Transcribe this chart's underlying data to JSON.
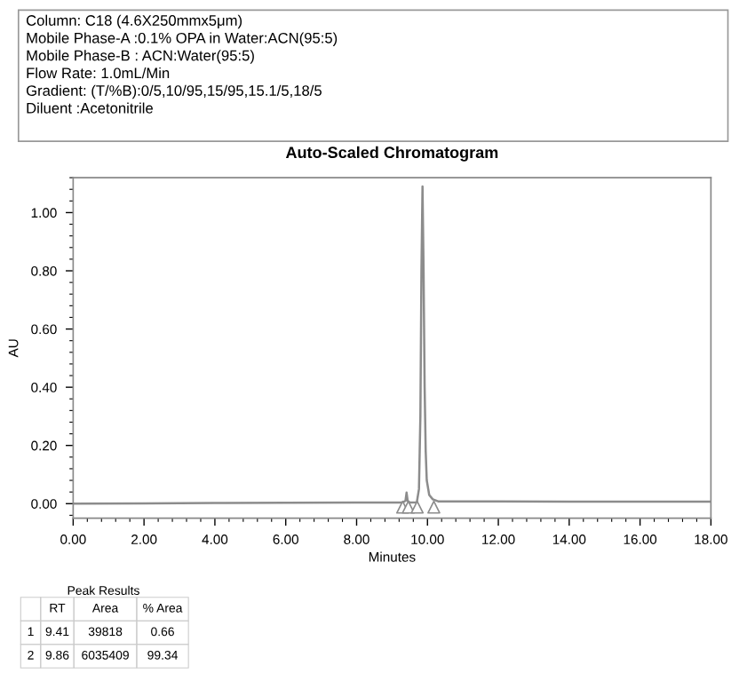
{
  "chart_data": {
    "type": "line",
    "title": "Auto-Scaled Chromatogram",
    "xlabel": "Minutes",
    "ylabel": "AU",
    "series": [
      {
        "color": "#8c8c8c",
        "x": [
          0,
          2,
          4,
          6,
          8,
          9.0,
          9.3,
          9.38,
          9.41,
          9.44,
          9.5,
          9.7,
          9.76,
          9.8,
          9.83,
          9.86,
          9.89,
          9.92,
          9.95,
          9.98,
          10.05,
          10.15,
          10.3,
          12,
          14,
          16,
          18
        ],
        "values": [
          0.0,
          0.001,
          0.002,
          0.003,
          0.004,
          0.004,
          0.004,
          0.01,
          0.038,
          0.01,
          0.004,
          0.005,
          0.05,
          0.3,
          0.8,
          1.09,
          0.8,
          0.4,
          0.18,
          0.08,
          0.03,
          0.015,
          0.008,
          0.008,
          0.007,
          0.007,
          0.007
        ]
      },
      {
        "type": "scatter",
        "color": "#8c8c8c",
        "marker": "triangle",
        "x": [
          9.3,
          9.46,
          9.71,
          10.18
        ],
        "values": [
          -0.012,
          -0.012,
          -0.012,
          -0.012
        ]
      }
    ],
    "xlim": [
      0,
      18
    ],
    "ylim": [
      -0.05,
      1.12
    ],
    "xticks": [
      {
        "value": 0,
        "label": "0.00"
      },
      {
        "value": 2,
        "label": "2.00"
      },
      {
        "value": 4,
        "label": "4.00"
      },
      {
        "value": 6,
        "label": "6.00"
      },
      {
        "value": 8,
        "label": "8.00"
      },
      {
        "value": 10,
        "label": "10.00"
      },
      {
        "value": 12,
        "label": "12.00"
      },
      {
        "value": 14,
        "label": "14.00"
      },
      {
        "value": 16,
        "label": "16.00"
      },
      {
        "value": 18,
        "label": "18.00"
      }
    ],
    "yticks": [
      {
        "value": 0,
        "label": "0.00"
      },
      {
        "value": 0.2,
        "label": "0.20"
      },
      {
        "value": 0.4,
        "label": "0.40"
      },
      {
        "value": 0.6,
        "label": "0.60"
      },
      {
        "value": 0.8,
        "label": "0.80"
      },
      {
        "value": 1,
        "label": "1.00"
      }
    ],
    "grid": false,
    "annotations": [
      "Column: C18 (4.6X250mmx5μm)\nMobile Phase-A :0.1% OPA in Water:ACN(95:5)\nMobile Phase-B : ACN:Water(95:5)\nFlow Rate: 1.0mL/Min\nGradient: (T/%B):0/5,10/95,15/95,15.1/5,18/5\nDiluent :Acetonitrile",
      "Peak Results",
      "\tRT\tArea\t% Area\n1\t9.41\t39818\t0.66\n2\t9.86\t6035409\t99.34"
    ]
  }
}
